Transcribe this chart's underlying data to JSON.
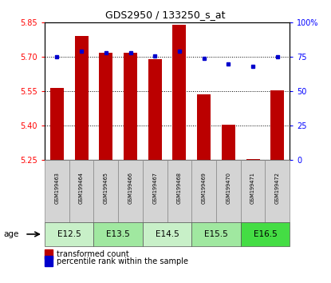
{
  "title": "GDS2950 / 133250_s_at",
  "samples": [
    "GSM199463",
    "GSM199464",
    "GSM199465",
    "GSM199466",
    "GSM199467",
    "GSM199468",
    "GSM199469",
    "GSM199470",
    "GSM199471",
    "GSM199472"
  ],
  "transformed_count": [
    5.565,
    5.79,
    5.72,
    5.72,
    5.69,
    5.84,
    5.535,
    5.405,
    5.255,
    5.555
  ],
  "percentile_rank": [
    75,
    79,
    78,
    78,
    76,
    79,
    74,
    70,
    68,
    75
  ],
  "ylim_left": [
    5.25,
    5.85
  ],
  "ylim_right": [
    0,
    100
  ],
  "yticks_left": [
    5.25,
    5.4,
    5.55,
    5.7,
    5.85
  ],
  "yticks_right": [
    0,
    25,
    50,
    75,
    100
  ],
  "bar_color": "#bb0000",
  "dot_color": "#0000cc",
  "age_groups": [
    {
      "label": "E12.5",
      "indices": [
        0,
        1
      ],
      "color": "#c8f0c8"
    },
    {
      "label": "E13.5",
      "indices": [
        2,
        3
      ],
      "color": "#a0e8a0"
    },
    {
      "label": "E14.5",
      "indices": [
        4,
        5
      ],
      "color": "#c8f0c8"
    },
    {
      "label": "E15.5",
      "indices": [
        6,
        7
      ],
      "color": "#a0e8a0"
    },
    {
      "label": "E16.5",
      "indices": [
        8,
        9
      ],
      "color": "#44dd44"
    }
  ],
  "legend_bar_label": "transformed count",
  "legend_dot_label": "percentile rank within the sample",
  "age_label": "age"
}
